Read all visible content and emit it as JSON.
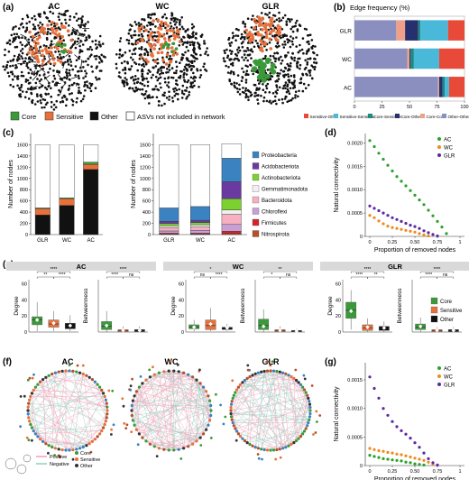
{
  "panels": {
    "a": {
      "label": "(a)",
      "titles": [
        "AC",
        "WC",
        "GLR"
      ],
      "legend": [
        {
          "label": "Core",
          "color": "#3a9a3a"
        },
        {
          "label": "Sensitive",
          "color": "#e8703a"
        },
        {
          "label": "Other",
          "color": "#111111"
        },
        {
          "label": "ASVs not included in network",
          "color": "#ffffff"
        }
      ]
    },
    "b": {
      "label": "(b)",
      "title": "Edge frequency (%)"
    },
    "c": {
      "label": "(c)"
    },
    "d": {
      "label": "(d)"
    },
    "e": {
      "label": "(e)"
    },
    "f": {
      "label": "(f)",
      "titles": [
        "AC",
        "WC",
        "GLR"
      ],
      "legend": [
        {
          "label": "Positive",
          "color": "#f5a0b8"
        },
        {
          "label": "Negative",
          "color": "#8fd0c0"
        },
        {
          "label": "Core",
          "color": "#3a9a3a"
        },
        {
          "label": "Sensitive",
          "color": "#e8703a"
        },
        {
          "label": "Other",
          "color": "#333333"
        }
      ]
    },
    "g": {
      "label": "(g)"
    }
  },
  "chart_data": [
    {
      "id": "b",
      "type": "bar",
      "orientation": "horizontal",
      "stacked": true,
      "title": "Edge frequency (%)",
      "categories": [
        "GLR",
        "WC",
        "AC"
      ],
      "xlim": [
        0,
        100
      ],
      "xticks": [
        0,
        25,
        50,
        75,
        100
      ],
      "series": [
        {
          "name": "Other-Other",
          "color": "#8a8fc0",
          "values": [
            38,
            48,
            76
          ]
        },
        {
          "name": "Core-Core",
          "color": "#f0a088",
          "values": [
            8,
            2,
            1
          ]
        },
        {
          "name": "Core-Other",
          "color": "#26306e",
          "values": [
            12,
            1,
            3
          ]
        },
        {
          "name": "Core-Sensitive",
          "color": "#1b8a80",
          "values": [
            2,
            3,
            2
          ]
        },
        {
          "name": "Sensitive-Sensitive",
          "color": "#4ab8d8",
          "values": [
            25,
            23,
            4
          ]
        },
        {
          "name": "Sensitive-Other",
          "color": "#e84a3a",
          "values": [
            15,
            23,
            14
          ]
        }
      ],
      "legend_position": "bottom"
    },
    {
      "id": "c1",
      "type": "bar",
      "stacked": true,
      "ylabel": "Number of nodes",
      "categories": [
        "GLR",
        "WC",
        "AC"
      ],
      "ylim": [
        0,
        1800
      ],
      "yticks": [
        0,
        200,
        400,
        600,
        800,
        1000,
        1200,
        1400,
        1600
      ],
      "series": [
        {
          "name": "Other",
          "color": "#111111",
          "values": [
            350,
            520,
            1160
          ]
        },
        {
          "name": "Sensitive",
          "color": "#e8703a",
          "values": [
            110,
            120,
            90
          ]
        },
        {
          "name": "Core",
          "color": "#3a9a3a",
          "values": [
            15,
            15,
            40
          ]
        },
        {
          "name": "ASVs not included in network",
          "color": "#ffffff",
          "values": [
            1125,
            945,
            310
          ]
        }
      ]
    },
    {
      "id": "c2",
      "type": "bar",
      "stacked": true,
      "ylabel": "Number of nodes",
      "categories": [
        "GLR",
        "WC",
        "AC"
      ],
      "ylim": [
        0,
        1800
      ],
      "yticks": [
        0,
        200,
        400,
        600,
        800,
        1000,
        1200,
        1400,
        1600
      ],
      "series": [
        {
          "name": "Nitrospirota",
          "color": "#b5502a",
          "values": [
            10,
            10,
            20
          ]
        },
        {
          "name": "Firmicutes",
          "color": "#d4262a",
          "values": [
            15,
            15,
            40
          ]
        },
        {
          "name": "Chloroflexi",
          "color": "#c8a0d8",
          "values": [
            40,
            50,
            120
          ]
        },
        {
          "name": "Bacteroidota",
          "color": "#f8b0c0",
          "values": [
            60,
            60,
            180
          ]
        },
        {
          "name": "Gemmatimonadota",
          "color": "#f0f0f0",
          "values": [
            30,
            40,
            80
          ]
        },
        {
          "name": "Actinobacteriota",
          "color": "#7cd030",
          "values": [
            40,
            40,
            200
          ]
        },
        {
          "name": "Acidobacteriota",
          "color": "#6a3aa0",
          "values": [
            40,
            40,
            300
          ]
        },
        {
          "name": "Proteobacteria",
          "color": "#3a82c0",
          "values": [
            240,
            245,
            420
          ]
        },
        {
          "name": "Other",
          "color": "#ffffff",
          "values": [
            1125,
            1100,
            260
          ]
        }
      ],
      "legend_position": "right"
    },
    {
      "id": "d",
      "type": "scatter",
      "xlabel": "Proportion of removed nodes",
      "ylabel": "Natural connectivity",
      "xlim": [
        -0.05,
        1.05
      ],
      "ylim": [
        0,
        0.0022
      ],
      "xticks": [
        0.0,
        0.25,
        0.5,
        0.75,
        1.0
      ],
      "yticks": [
        0.0,
        0.0005,
        0.001,
        0.0015,
        0.002
      ],
      "legend_position": "top-right",
      "series": [
        {
          "name": "AC",
          "color": "#2aa12a",
          "x": [
            0.0,
            0.05,
            0.1,
            0.15,
            0.2,
            0.25,
            0.3,
            0.35,
            0.4,
            0.45,
            0.5,
            0.55,
            0.6,
            0.65,
            0.7,
            0.75,
            0.8,
            0.85
          ],
          "y": [
            0.00205,
            0.00192,
            0.00178,
            0.00165,
            0.00152,
            0.0014,
            0.00128,
            0.00118,
            0.00108,
            0.00098,
            0.00088,
            0.00078,
            0.00068,
            0.00056,
            0.00044,
            0.00032,
            0.0002,
            6e-05
          ]
        },
        {
          "name": "WC",
          "color": "#f08a1a",
          "x": [
            0.0,
            0.05,
            0.1,
            0.15,
            0.2,
            0.25,
            0.3,
            0.35,
            0.4,
            0.45,
            0.5,
            0.55,
            0.6,
            0.65
          ],
          "y": [
            0.00045,
            0.0004,
            0.00033,
            0.00027,
            0.00022,
            0.00019,
            0.00017,
            0.00015,
            0.00013,
            0.00011,
            9e-05,
            6e-05,
            3e-05,
            1e-05
          ]
        },
        {
          "name": "GLR",
          "color": "#5a2aa0",
          "x": [
            0.0,
            0.05,
            0.1,
            0.15,
            0.2,
            0.25,
            0.3,
            0.35,
            0.4,
            0.45,
            0.5,
            0.55,
            0.6,
            0.65,
            0.7,
            0.75
          ],
          "y": [
            0.00065,
            0.0006,
            0.00055,
            0.0005,
            0.00045,
            0.0004,
            0.00036,
            0.00032,
            0.00028,
            0.00024,
            0.00021,
            0.00017,
            0.00012,
            8e-05,
            4e-05,
            1e-05
          ]
        }
      ]
    },
    {
      "id": "e",
      "type": "box",
      "groups": [
        "AC",
        "WC",
        "GLR"
      ],
      "categories": [
        "Core",
        "Sensitive",
        "Other"
      ],
      "colors": {
        "Core": "#3a9a3a",
        "Sensitive": "#e8703a",
        "Other": "#111111"
      },
      "legend_position": "right",
      "panels": [
        {
          "group": "AC",
          "metric": "Degree",
          "ylim": [
            0,
            65
          ],
          "yticks": [
            0,
            20,
            40,
            60
          ],
          "boxes": [
            {
              "q1": 9,
              "med": 15,
              "q3": 19,
              "lo": 1,
              "hi": 37,
              "mean": 15
            },
            {
              "q1": 6,
              "med": 10,
              "q3": 15,
              "lo": 1,
              "hi": 26,
              "mean": 11
            },
            {
              "q1": 4,
              "med": 7,
              "q3": 11,
              "lo": 1,
              "hi": 21,
              "mean": 8
            }
          ],
          "sig": [
            {
              "a": 0,
              "b": 1,
              "t": "**"
            },
            {
              "a": 1,
              "b": 2,
              "t": "****"
            },
            {
              "a": 0,
              "b": 2,
              "t": "****"
            }
          ]
        },
        {
          "group": "AC",
          "metric": "Betweenness",
          "ylim": [
            0,
            65
          ],
          "yticks": [],
          "boxes": [
            {
              "q1": 3,
              "med": 7,
              "q3": 13,
              "lo": 0,
              "hi": 26,
              "mean": 8
            },
            {
              "q1": 0.5,
              "med": 1.5,
              "q3": 3,
              "lo": 0,
              "hi": 7,
              "mean": 2
            },
            {
              "q1": 0.5,
              "med": 1.5,
              "q3": 3,
              "lo": 0,
              "hi": 7,
              "mean": 2
            }
          ],
          "sig": [
            {
              "a": 0,
              "b": 1,
              "t": "****"
            },
            {
              "a": 1,
              "b": 2,
              "t": "ns"
            },
            {
              "a": 0,
              "b": 2,
              "t": "****"
            }
          ]
        },
        {
          "group": "WC",
          "metric": "Degree",
          "ylim": [
            0,
            65
          ],
          "yticks": [
            0,
            20,
            40,
            60
          ],
          "boxes": [
            {
              "q1": 4,
              "med": 6,
              "q3": 9,
              "lo": 1,
              "hi": 15,
              "mean": 6
            },
            {
              "q1": 3,
              "med": 8,
              "q3": 15,
              "lo": 1,
              "hi": 30,
              "mean": 10
            },
            {
              "q1": 3,
              "med": 4,
              "q3": 6,
              "lo": 1,
              "hi": 10,
              "mean": 5
            }
          ],
          "sig": [
            {
              "a": 0,
              "b": 1,
              "t": "ns"
            },
            {
              "a": 1,
              "b": 2,
              "t": "****"
            },
            {
              "a": 0,
              "b": 2,
              "t": "*"
            }
          ]
        },
        {
          "group": "WC",
          "metric": "Betweenness",
          "ylim": [
            0,
            65
          ],
          "yticks": [],
          "boxes": [
            {
              "q1": 3,
              "med": 8,
              "q3": 16,
              "lo": 0,
              "hi": 28,
              "mean": 7
            },
            {
              "q1": 0.5,
              "med": 1.5,
              "q3": 3,
              "lo": 0,
              "hi": 7,
              "mean": 2
            },
            {
              "q1": 0.3,
              "med": 1,
              "q3": 2,
              "lo": 0,
              "hi": 4,
              "mean": 1
            }
          ],
          "sig": [
            {
              "a": 0,
              "b": 1,
              "t": "*"
            },
            {
              "a": 1,
              "b": 2,
              "t": "ns"
            },
            {
              "a": 0,
              "b": 2,
              "t": "**"
            }
          ]
        },
        {
          "group": "GLR",
          "metric": "Degree",
          "ylim": [
            0,
            65
          ],
          "yticks": [
            0,
            20,
            40,
            60
          ],
          "boxes": [
            {
              "q1": 17,
              "med": 27,
              "q3": 37,
              "lo": 3,
              "hi": 52,
              "mean": 26
            },
            {
              "q1": 2,
              "med": 5,
              "q3": 9,
              "lo": 0,
              "hi": 17,
              "mean": 6
            },
            {
              "q1": 2,
              "med": 4,
              "q3": 7,
              "lo": 0,
              "hi": 13,
              "mean": 5
            }
          ],
          "sig": [
            {
              "a": 0,
              "b": 1,
              "t": "****"
            },
            {
              "a": 1,
              "b": 2,
              "t": "**"
            },
            {
              "a": 0,
              "b": 2,
              "t": "****"
            }
          ]
        },
        {
          "group": "GLR",
          "metric": "Betweenness",
          "ylim": [
            0,
            65
          ],
          "yticks": [],
          "boxes": [
            {
              "q1": 3,
              "med": 6,
              "q3": 10,
              "lo": 0,
              "hi": 18,
              "mean": 7
            },
            {
              "q1": 0.5,
              "med": 1.5,
              "q3": 3,
              "lo": 0,
              "hi": 6,
              "mean": 2
            },
            {
              "q1": 0.5,
              "med": 1.5,
              "q3": 3,
              "lo": 0,
              "hi": 6,
              "mean": 2
            }
          ],
          "sig": [
            {
              "a": 0,
              "b": 1,
              "t": "****"
            },
            {
              "a": 1,
              "b": 2,
              "t": "ns"
            },
            {
              "a": 0,
              "b": 2,
              "t": "****"
            }
          ]
        }
      ]
    },
    {
      "id": "g",
      "type": "scatter",
      "xlabel": "Proportion of removed nodes",
      "ylabel": "Natural connectivity",
      "xlim": [
        -0.05,
        1.05
      ],
      "ylim": [
        0,
        0.0018
      ],
      "xticks": [
        0.0,
        0.25,
        0.5,
        0.75,
        1.0
      ],
      "yticks": [
        0.0,
        0.0005,
        0.001,
        0.0015
      ],
      "legend_position": "top-right",
      "series": [
        {
          "name": "AC",
          "color": "#2aa12a",
          "x": [
            0.0,
            0.05,
            0.1,
            0.15,
            0.2,
            0.25,
            0.3,
            0.35,
            0.4,
            0.45,
            0.5,
            0.55,
            0.6
          ],
          "y": [
            0.00018,
            0.00016,
            0.00014,
            0.00012,
            0.00011,
            0.0001,
            9e-05,
            8e-05,
            6e-05,
            5e-05,
            3e-05,
            2e-05,
            1e-05
          ]
        },
        {
          "name": "WC",
          "color": "#f08a1a",
          "x": [
            0.0,
            0.05,
            0.1,
            0.15,
            0.2,
            0.25,
            0.3,
            0.35,
            0.4,
            0.45,
            0.5,
            0.55,
            0.6,
            0.65,
            0.7
          ],
          "y": [
            0.0003,
            0.00028,
            0.00026,
            0.00025,
            0.00023,
            0.00022,
            0.0002,
            0.00019,
            0.00017,
            0.00015,
            0.00013,
            0.00011,
            9e-05,
            6e-05,
            3e-05
          ]
        },
        {
          "name": "GLR",
          "color": "#5a2aa0",
          "x": [
            0.0,
            0.05,
            0.1,
            0.15,
            0.2,
            0.25,
            0.3,
            0.35,
            0.4,
            0.45,
            0.5,
            0.55,
            0.6,
            0.65,
            0.7,
            0.75
          ],
          "y": [
            0.00155,
            0.00135,
            0.00118,
            0.001,
            0.00088,
            0.00077,
            0.00068,
            0.00061,
            0.00055,
            0.00048,
            0.0004,
            0.00032,
            0.00022,
            0.00012,
            5e-05,
            1e-05
          ]
        }
      ]
    }
  ]
}
